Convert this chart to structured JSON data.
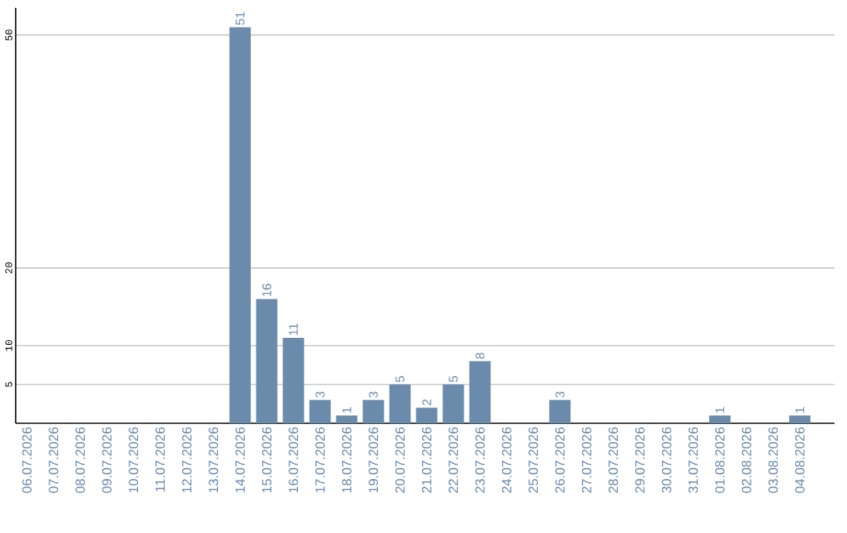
{
  "chart_data": {
    "type": "bar",
    "categories": [
      "06.07.2026",
      "07.07.2026",
      "08.07.2026",
      "09.07.2026",
      "10.07.2026",
      "11.07.2026",
      "12.07.2026",
      "13.07.2026",
      "14.07.2026",
      "15.07.2026",
      "16.07.2026",
      "17.07.2026",
      "18.07.2026",
      "19.07.2026",
      "20.07.2026",
      "21.07.2026",
      "22.07.2026",
      "23.07.2026",
      "24.07.2026",
      "25.07.2026",
      "26.07.2026",
      "27.07.2026",
      "28.07.2026",
      "29.07.2026",
      "30.07.2026",
      "31.07.2026",
      "01.08.2026",
      "02.08.2026",
      "03.08.2026",
      "04.08.2026"
    ],
    "values": [
      0,
      0,
      0,
      0,
      0,
      0,
      0,
      0,
      51,
      16,
      11,
      3,
      1,
      3,
      5,
      2,
      5,
      8,
      0,
      0,
      3,
      0,
      0,
      0,
      0,
      0,
      1,
      0,
      0,
      1
    ],
    "value_labels": [
      null,
      null,
      null,
      null,
      null,
      null,
      null,
      null,
      "51",
      "16",
      "11",
      "3",
      "1",
      "3",
      "5",
      "2",
      "5",
      "8",
      null,
      null,
      "3",
      null,
      null,
      null,
      null,
      null,
      "1",
      null,
      null,
      "1"
    ],
    "color": "#6a8bab",
    "ylim": [
      0,
      53.5
    ],
    "yticks": [
      5,
      10,
      20,
      50
    ],
    "grid": "y"
  }
}
